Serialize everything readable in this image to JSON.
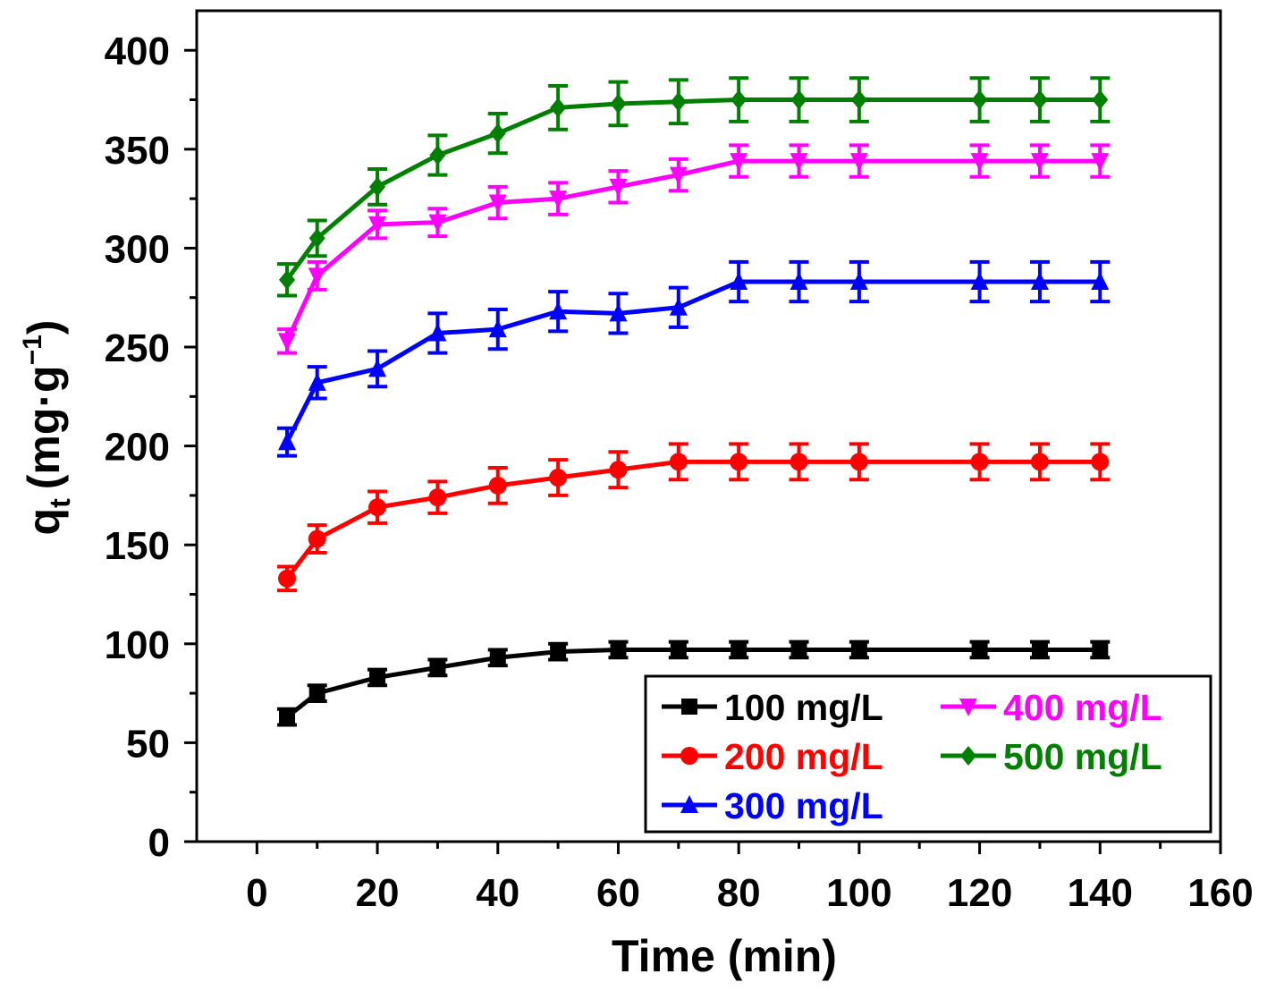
{
  "chart_data": {
    "type": "line",
    "title": "",
    "xlabel": "Time (min)",
    "ylabel_main": "q",
    "ylabel_sub": "t",
    "ylabel_unit": "(mg·g",
    "ylabel_sup": "−1",
    "ylabel_close": ")",
    "xlim": [
      -10,
      160
    ],
    "ylim": [
      0,
      420
    ],
    "xticks": [
      0,
      20,
      40,
      60,
      80,
      100,
      120,
      140,
      160
    ],
    "yticks": [
      0,
      50,
      100,
      150,
      200,
      250,
      300,
      350,
      400
    ],
    "x": [
      5,
      10,
      20,
      30,
      40,
      50,
      60,
      70,
      80,
      90,
      100,
      120,
      130,
      140
    ],
    "legend_position": "bottom-right",
    "series": [
      {
        "name": "100 mg/L",
        "color": "#000000",
        "marker": "square",
        "values": [
          63,
          75,
          83,
          88,
          93,
          96,
          97,
          97,
          97,
          97,
          97,
          97,
          97,
          97
        ],
        "errors": [
          4,
          4,
          4,
          4,
          4,
          4,
          4,
          4,
          4,
          4,
          4,
          4,
          4,
          4
        ]
      },
      {
        "name": "200 mg/L",
        "color": "#ff0000",
        "marker": "circle",
        "values": [
          133,
          153,
          169,
          174,
          180,
          184,
          188,
          192,
          192,
          192,
          192,
          192,
          192,
          192
        ],
        "errors": [
          6,
          7,
          8,
          8,
          9,
          9,
          9,
          9,
          9,
          9,
          9,
          9,
          9,
          9
        ]
      },
      {
        "name": "300 mg/L",
        "color": "#0000ff",
        "marker": "triangle-up",
        "values": [
          202,
          232,
          239,
          257,
          259,
          268,
          267,
          270,
          283,
          283,
          283,
          283,
          283,
          283
        ],
        "errors": [
          7,
          8,
          9,
          10,
          10,
          10,
          10,
          10,
          10,
          10,
          10,
          10,
          10,
          10
        ]
      },
      {
        "name": "400 mg/L",
        "color": "#ff00ff",
        "marker": "triangle-down",
        "values": [
          253,
          286,
          312,
          313,
          323,
          325,
          331,
          337,
          344,
          344,
          344,
          344,
          344,
          344
        ],
        "errors": [
          6,
          7,
          7,
          7,
          8,
          8,
          8,
          8,
          8,
          8,
          8,
          8,
          8,
          8
        ]
      },
      {
        "name": "500 mg/L",
        "color": "#008000",
        "marker": "diamond",
        "values": [
          284,
          305,
          331,
          347,
          358,
          371,
          373,
          374,
          375,
          375,
          375,
          375,
          375,
          375
        ],
        "errors": [
          8,
          9,
          9,
          10,
          10,
          11,
          11,
          11,
          11,
          11,
          11,
          11,
          11,
          11
        ]
      }
    ]
  }
}
